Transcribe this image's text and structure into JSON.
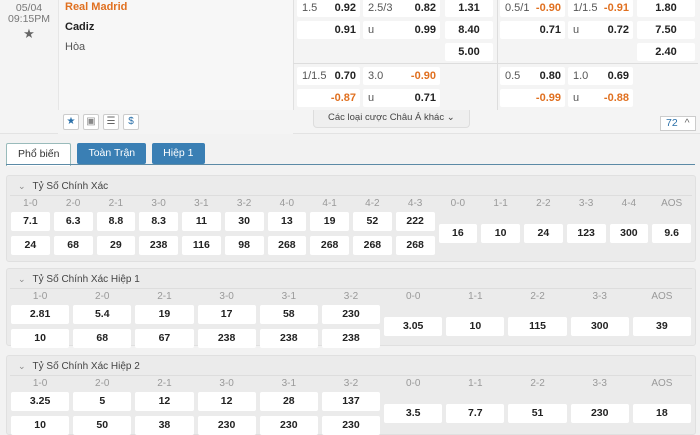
{
  "match": {
    "date": "05/04",
    "time": "09:15PM",
    "home": "Real Madrid",
    "away": "Cadiz",
    "draw": "Hòa"
  },
  "odds_cells": [
    {
      "g": 0,
      "t": "hdp",
      "r": 0,
      "line": "1.5",
      "val": "0.92"
    },
    {
      "g": 0,
      "t": "hdp",
      "r": 1,
      "line": "",
      "val": "0.91"
    },
    {
      "g": 0,
      "t": "ou",
      "r": 0,
      "line": "2.5/3",
      "val": "0.82"
    },
    {
      "g": 0,
      "t": "ou",
      "r": 1,
      "line": "u",
      "val": "0.99"
    },
    {
      "g": 0,
      "t": "x12",
      "r": 0,
      "line": "",
      "val": "1.31"
    },
    {
      "g": 0,
      "t": "x12",
      "r": 1,
      "line": "",
      "val": "8.40"
    },
    {
      "g": 0,
      "t": "x12",
      "r": 2,
      "line": "",
      "val": "5.00"
    },
    {
      "g": 0,
      "t": "hdp",
      "r": 3,
      "line": "1/1.5",
      "val": "0.70"
    },
    {
      "g": 0,
      "t": "hdp",
      "r": 4,
      "line": "",
      "val": "-0.87"
    },
    {
      "g": 0,
      "t": "ou",
      "r": 3,
      "line": "3.0",
      "val": "-0.90"
    },
    {
      "g": 0,
      "t": "ou",
      "r": 4,
      "line": "u",
      "val": "0.71"
    },
    {
      "g": 1,
      "t": "hdp",
      "r": 0,
      "line": "0.5/1",
      "val": "-0.90"
    },
    {
      "g": 1,
      "t": "hdp",
      "r": 1,
      "line": "",
      "val": "0.71"
    },
    {
      "g": 1,
      "t": "ou",
      "r": 0,
      "line": "1/1.5",
      "val": "-0.91"
    },
    {
      "g": 1,
      "t": "ou",
      "r": 1,
      "line": "u",
      "val": "0.72"
    },
    {
      "g": 1,
      "t": "x12",
      "r": 0,
      "line": "",
      "val": "1.80"
    },
    {
      "g": 1,
      "t": "x12",
      "r": 1,
      "line": "",
      "val": "7.50"
    },
    {
      "g": 1,
      "t": "x12",
      "r": 2,
      "line": "",
      "val": "2.40"
    },
    {
      "g": 1,
      "t": "hdp",
      "r": 3,
      "line": "0.5",
      "val": "0.80"
    },
    {
      "g": 1,
      "t": "hdp",
      "r": 4,
      "line": "",
      "val": "-0.99"
    },
    {
      "g": 1,
      "t": "ou",
      "r": 3,
      "line": "1.0",
      "val": "0.69"
    },
    {
      "g": 1,
      "t": "ou",
      "r": 4,
      "line": "u",
      "val": "-0.88"
    }
  ],
  "footer": {
    "more_label": "Các loại cược Châu Á khác",
    "count": "72",
    "icons": [
      "star-icon",
      "jersey-icon",
      "list-icon",
      "dollar-icon"
    ]
  },
  "colors": {
    "accent": "#3a7fb4",
    "negative": "#e07020"
  },
  "tabs": [
    "Phổ biến",
    "Toàn Trận",
    "Hiệp 1"
  ],
  "sections": [
    {
      "title": "Tỷ Số Chính Xác",
      "scores": [
        [
          "1-0",
          "7.1",
          "24"
        ],
        [
          "2-0",
          "6.3",
          "68"
        ],
        [
          "2-1",
          "8.8",
          "29"
        ],
        [
          "3-0",
          "8.3",
          "238"
        ],
        [
          "3-1",
          "11",
          "116"
        ],
        [
          "3-2",
          "30",
          "98"
        ],
        [
          "4-0",
          "13",
          "268"
        ],
        [
          "4-1",
          "19",
          "268"
        ],
        [
          "4-2",
          "52",
          "268"
        ],
        [
          "4-3",
          "222",
          "268"
        ]
      ],
      "draws": [
        [
          "0-0",
          "16"
        ],
        [
          "1-1",
          "10"
        ],
        [
          "2-2",
          "24"
        ],
        [
          "3-3",
          "123"
        ],
        [
          "4-4",
          "300"
        ],
        [
          "AOS",
          "9.6"
        ]
      ]
    },
    {
      "title": "Tỷ Số Chính Xác Hiệp 1",
      "scores": [
        [
          "1-0",
          "2.81",
          "10"
        ],
        [
          "2-0",
          "5.4",
          "68"
        ],
        [
          "2-1",
          "19",
          "67"
        ],
        [
          "3-0",
          "17",
          "238"
        ],
        [
          "3-1",
          "58",
          "238"
        ],
        [
          "3-2",
          "230",
          "238"
        ]
      ],
      "draws": [
        [
          "0-0",
          "3.05"
        ],
        [
          "1-1",
          "10"
        ],
        [
          "2-2",
          "115"
        ],
        [
          "3-3",
          "300"
        ],
        [
          "AOS",
          "39"
        ]
      ]
    },
    {
      "title": "Tỷ Số Chính Xác Hiệp 2",
      "scores": [
        [
          "1-0",
          "3.25",
          "10"
        ],
        [
          "2-0",
          "5",
          "50"
        ],
        [
          "2-1",
          "12",
          "38"
        ],
        [
          "3-0",
          "12",
          "230"
        ],
        [
          "3-1",
          "28",
          "230"
        ],
        [
          "3-2",
          "137",
          "230"
        ]
      ],
      "draws": [
        [
          "0-0",
          "3.5"
        ],
        [
          "1-1",
          "7.7"
        ],
        [
          "2-2",
          "51"
        ],
        [
          "3-3",
          "230"
        ],
        [
          "AOS",
          "18"
        ]
      ]
    }
  ]
}
